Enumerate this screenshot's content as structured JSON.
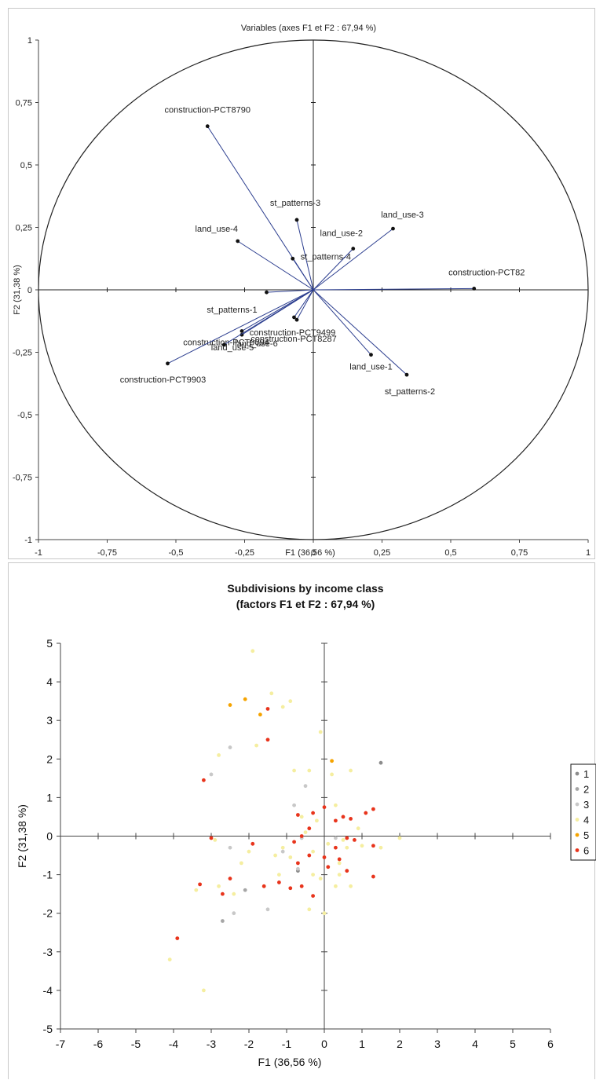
{
  "chart_data": [
    {
      "type": "scatter",
      "title": "Variables (axes F1 et F2 : 67,94 %)",
      "xlabel": "F1 (36,56 %)",
      "ylabel": "F2 (31,38 %)",
      "xlim": [
        -1,
        1
      ],
      "ylim": [
        -1,
        1
      ],
      "xticks": [
        "-1",
        "-0,75",
        "-0,5",
        "-0,25",
        "0",
        "0,25",
        "0,5",
        "0,75",
        "1"
      ],
      "yticks": [
        "-1",
        "-0,75",
        "-0,5",
        "-0,25",
        "0",
        "0,25",
        "0,5",
        "0,75",
        "1"
      ],
      "unit_circle": true,
      "vectors": [
        {
          "label": "construction-PCT8790",
          "x": -0.385,
          "y": 0.655
        },
        {
          "label": "st_patterns-3",
          "x": -0.06,
          "y": 0.28
        },
        {
          "label": "land_use-4",
          "x": -0.275,
          "y": 0.195
        },
        {
          "label": "st_patterns-4",
          "x": -0.075,
          "y": 0.125
        },
        {
          "label": "land_use-3",
          "x": 0.29,
          "y": 0.245
        },
        {
          "label": "land_use-2",
          "x": 0.145,
          "y": 0.165
        },
        {
          "label": "construction-PCT82",
          "x": 0.585,
          "y": 0.005
        },
        {
          "label": "st_patterns-1",
          "x": -0.17,
          "y": -0.01
        },
        {
          "label": "construction-PCT9499",
          "x": -0.07,
          "y": -0.11
        },
        {
          "label": "construction-PCT8287",
          "x": -0.06,
          "y": -0.12
        },
        {
          "label": "construction-PCT9094",
          "x": -0.26,
          "y": -0.165
        },
        {
          "label": "land_use-5",
          "x": -0.26,
          "y": -0.18
        },
        {
          "label": "land_use-6",
          "x": -0.325,
          "y": -0.22
        },
        {
          "label": "construction-PCT9903",
          "x": -0.53,
          "y": -0.295
        },
        {
          "label": "land_use-1",
          "x": 0.21,
          "y": -0.26
        },
        {
          "label": "st_patterns-2",
          "x": 0.34,
          "y": -0.34
        }
      ]
    },
    {
      "type": "scatter",
      "title": "Subdivisions by income class",
      "subtitle": "(factors F1 et F2 : 67,94 %)",
      "xlabel": "F1 (36,56 %)",
      "ylabel": "F2 (31,38 %)",
      "xlim": [
        -7,
        6
      ],
      "ylim": [
        -5,
        5
      ],
      "xticks": [
        -7,
        -6,
        -5,
        -4,
        -3,
        -2,
        -1,
        0,
        1,
        2,
        3,
        4,
        5,
        6
      ],
      "yticks": [
        -5,
        -4,
        -3,
        -2,
        -1,
        0,
        1,
        2,
        3,
        4,
        5
      ],
      "legend": "right",
      "series": [
        {
          "name": "1",
          "color": "#8c8c8c",
          "points": [
            [
              -0.7,
              -0.9
            ],
            [
              1.5,
              1.9
            ]
          ]
        },
        {
          "name": "2",
          "color": "#a6a6a6",
          "points": [
            [
              -2.1,
              -1.4
            ],
            [
              -2.7,
              -2.2
            ]
          ]
        },
        {
          "name": "3",
          "color": "#c8c8c8",
          "points": [
            [
              -3.0,
              1.6
            ],
            [
              -2.5,
              2.3
            ],
            [
              -0.5,
              1.3
            ],
            [
              -0.8,
              0.8
            ],
            [
              -1.1,
              -0.4
            ],
            [
              -0.6,
              -0.05
            ],
            [
              0.3,
              -0.05
            ],
            [
              -1.5,
              -1.9
            ],
            [
              -2.4,
              -2.0
            ],
            [
              -2.5,
              -0.3
            ],
            [
              -0.7,
              -0.85
            ]
          ]
        },
        {
          "name": "4",
          "color": "#f5eea0",
          "points": [
            [
              -1.9,
              4.8
            ],
            [
              -1.4,
              3.7
            ],
            [
              -0.9,
              3.5
            ],
            [
              -1.1,
              3.35
            ],
            [
              -1.8,
              2.35
            ],
            [
              -2.8,
              2.1
            ],
            [
              -0.1,
              2.7
            ],
            [
              -0.8,
              1.7
            ],
            [
              -0.4,
              1.7
            ],
            [
              0.2,
              1.6
            ],
            [
              0.7,
              1.7
            ],
            [
              -0.6,
              0.5
            ],
            [
              0.3,
              0.8
            ],
            [
              0.1,
              -0.2
            ],
            [
              0.5,
              -0.1
            ],
            [
              -0.3,
              -0.4
            ],
            [
              -1.3,
              -0.5
            ],
            [
              -1.1,
              -0.3
            ],
            [
              -0.9,
              -0.55
            ],
            [
              -0.5,
              0.1
            ],
            [
              0.4,
              -0.7
            ],
            [
              0.6,
              -0.3
            ],
            [
              1.0,
              -0.25
            ],
            [
              1.5,
              -0.3
            ],
            [
              2.0,
              -0.05
            ],
            [
              0.4,
              -1.0
            ],
            [
              0.7,
              -1.3
            ],
            [
              0.3,
              -1.3
            ],
            [
              -0.1,
              -1.1
            ],
            [
              -0.4,
              -1.9
            ],
            [
              0.0,
              -2.0
            ],
            [
              -1.6,
              -1.3
            ],
            [
              -2.4,
              -1.5
            ],
            [
              -2.8,
              -1.3
            ],
            [
              -3.4,
              -1.4
            ],
            [
              -2.9,
              -0.1
            ],
            [
              -4.1,
              -3.2
            ],
            [
              -3.2,
              -4.0
            ],
            [
              -2.0,
              -0.4
            ],
            [
              -2.2,
              -0.7
            ],
            [
              -1.2,
              -1.0
            ],
            [
              -0.3,
              -1.0
            ],
            [
              0.9,
              0.2
            ],
            [
              -0.2,
              0.4
            ]
          ]
        },
        {
          "name": "5",
          "color": "#f5a300",
          "points": [
            [
              -2.5,
              3.4
            ],
            [
              -2.1,
              3.55
            ],
            [
              -1.7,
              3.15
            ],
            [
              0.2,
              1.95
            ]
          ]
        },
        {
          "name": "6",
          "color": "#e8341c",
          "points": [
            [
              -1.5,
              3.3
            ],
            [
              -1.5,
              2.5
            ],
            [
              -3.2,
              1.45
            ],
            [
              -3.0,
              -0.05
            ],
            [
              -1.9,
              -0.2
            ],
            [
              -0.6,
              0.0
            ],
            [
              -0.7,
              0.55
            ],
            [
              -0.3,
              0.6
            ],
            [
              0.0,
              0.75
            ],
            [
              -0.4,
              0.2
            ],
            [
              0.3,
              0.4
            ],
            [
              0.5,
              0.5
            ],
            [
              0.7,
              0.45
            ],
            [
              1.1,
              0.6
            ],
            [
              1.3,
              0.7
            ],
            [
              0.8,
              -0.1
            ],
            [
              -0.8,
              -0.15
            ],
            [
              0.1,
              -0.8
            ],
            [
              0.0,
              -0.55
            ],
            [
              0.4,
              -0.6
            ],
            [
              0.6,
              -0.9
            ],
            [
              1.3,
              -1.05
            ],
            [
              1.3,
              -0.25
            ],
            [
              -0.3,
              -1.55
            ],
            [
              -0.9,
              -1.35
            ],
            [
              -1.2,
              -1.2
            ],
            [
              -0.6,
              -1.3
            ],
            [
              -1.6,
              -1.3
            ],
            [
              -2.5,
              -1.1
            ],
            [
              -2.7,
              -1.5
            ],
            [
              -3.3,
              -1.25
            ],
            [
              -3.9,
              -2.65
            ],
            [
              -0.7,
              -0.7
            ],
            [
              -0.4,
              -0.5
            ],
            [
              0.3,
              -0.3
            ],
            [
              0.6,
              -0.05
            ]
          ]
        }
      ]
    }
  ]
}
